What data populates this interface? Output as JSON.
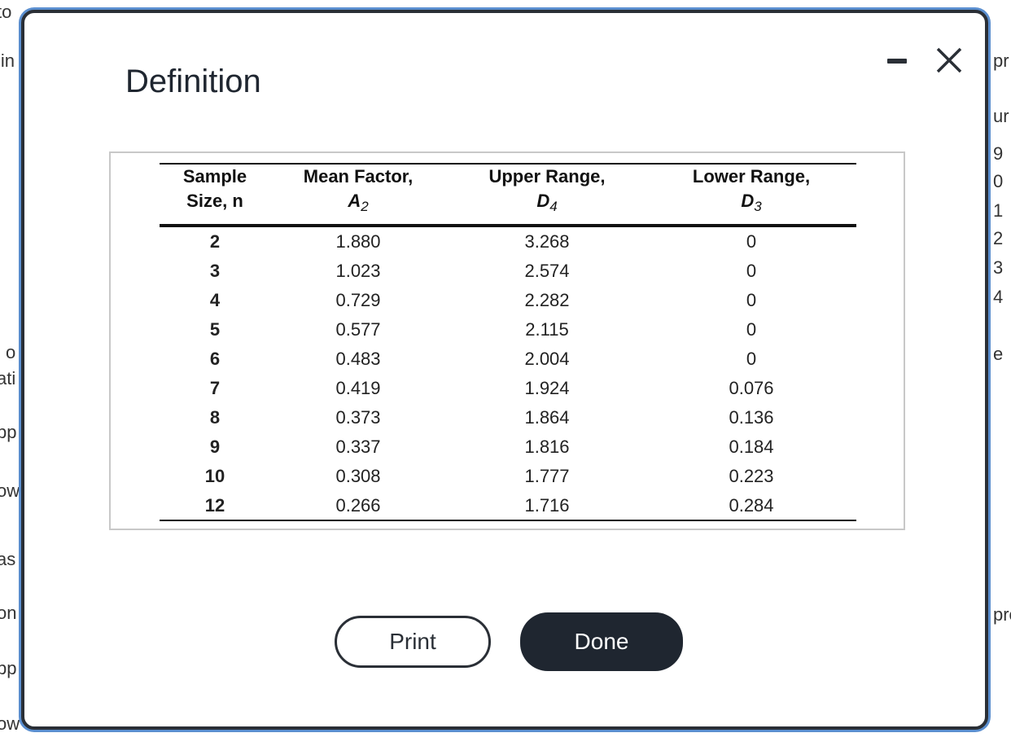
{
  "background": {
    "left_fragments": [
      "to",
      "lin",
      "l o",
      "ati",
      "pp",
      "ow",
      "as",
      "on",
      "pp",
      "ow"
    ],
    "right_fragments": [
      "pr",
      "ur",
      "9",
      "0",
      "1",
      "2",
      "3",
      "4",
      "e",
      "pro"
    ]
  },
  "dialog": {
    "title": "Definition",
    "table": {
      "headers": [
        {
          "label": "Sample Size, n"
        },
        {
          "label": "Mean Factor,",
          "symbol": "A",
          "subscript": "2"
        },
        {
          "label": "Upper Range,",
          "symbol": "D",
          "subscript": "4"
        },
        {
          "label": "Lower Range,",
          "symbol": "D",
          "subscript": "3"
        }
      ],
      "rows": [
        [
          "2",
          "1.880",
          "3.268",
          "0"
        ],
        [
          "3",
          "1.023",
          "2.574",
          "0"
        ],
        [
          "4",
          "0.729",
          "2.282",
          "0"
        ],
        [
          "5",
          "0.577",
          "2.115",
          "0"
        ],
        [
          "6",
          "0.483",
          "2.004",
          "0"
        ],
        [
          "7",
          "0.419",
          "1.924",
          "0.076"
        ],
        [
          "8",
          "0.373",
          "1.864",
          "0.136"
        ],
        [
          "9",
          "0.337",
          "1.816",
          "0.184"
        ],
        [
          "10",
          "0.308",
          "1.777",
          "0.223"
        ],
        [
          "12",
          "0.266",
          "1.716",
          "0.284"
        ]
      ]
    },
    "buttons": {
      "print": "Print",
      "done": "Done"
    }
  }
}
